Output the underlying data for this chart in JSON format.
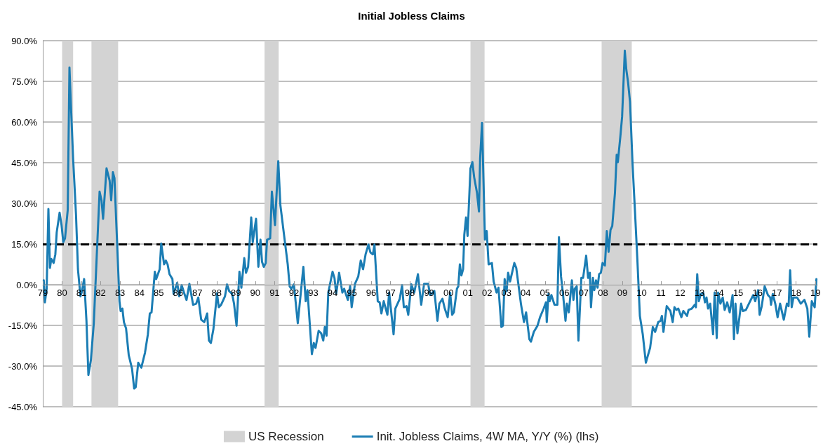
{
  "chart_data": {
    "type": "line",
    "title": "Initial Jobless Claims",
    "x": [
      1979.05,
      1979.11,
      1979.2,
      1979.29,
      1979.37,
      1979.44,
      1979.56,
      1979.65,
      1979.72,
      1979.87,
      1979.97,
      1980.06,
      1980.15,
      1980.29,
      1980.38,
      1980.47,
      1980.57,
      1980.72,
      1980.82,
      1980.95,
      1981.01,
      1981.14,
      1981.26,
      1981.36,
      1981.49,
      1981.64,
      1981.79,
      1981.94,
      1982.04,
      1982.12,
      1982.3,
      1982.46,
      1982.54,
      1982.63,
      1982.71,
      1982.84,
      1982.97,
      1983.03,
      1983.12,
      1983.2,
      1983.31,
      1983.45,
      1983.62,
      1983.73,
      1983.81,
      1983.94,
      1984.1,
      1984.29,
      1984.44,
      1984.54,
      1984.63,
      1984.8,
      1984.87,
      1985.05,
      1985.13,
      1985.28,
      1985.37,
      1985.46,
      1985.56,
      1985.71,
      1985.77,
      1985.96,
      1986.06,
      1986.19,
      1986.31,
      1986.44,
      1986.59,
      1986.78,
      1986.94,
      1987.05,
      1987.2,
      1987.36,
      1987.51,
      1987.6,
      1987.7,
      1987.83,
      1988.02,
      1988.11,
      1988.23,
      1988.43,
      1988.54,
      1988.65,
      1988.8,
      1988.9,
      1989.03,
      1989.18,
      1989.28,
      1989.43,
      1989.52,
      1989.63,
      1989.79,
      1989.87,
      1990.04,
      1990.16,
      1990.27,
      1990.35,
      1990.44,
      1990.54,
      1990.61,
      1990.77,
      1990.86,
      1991.02,
      1991.19,
      1991.3,
      1991.52,
      1991.68,
      1991.78,
      1991.87,
      1992.0,
      1992.2,
      1992.49,
      1992.61,
      1992.7,
      1992.93,
      1993.03,
      1993.12,
      1993.28,
      1993.41,
      1993.52,
      1993.6,
      1993.69,
      1993.78,
      1994.0,
      1994.1,
      1994.19,
      1994.34,
      1994.51,
      1994.6,
      1994.79,
      1994.91,
      1994.99,
      1995.16,
      1995.33,
      1995.46,
      1995.58,
      1995.71,
      1995.86,
      1995.96,
      1996.09,
      1996.17,
      1996.34,
      1996.44,
      1996.53,
      1996.65,
      1996.84,
      1996.93,
      1997.16,
      1997.25,
      1997.48,
      1997.6,
      1997.69,
      1997.83,
      1997.92,
      1998.08,
      1998.23,
      1998.42,
      1998.59,
      1998.74,
      1998.95,
      1999.05,
      1999.27,
      1999.43,
      1999.53,
      1999.69,
      1999.81,
      1999.96,
      2000.09,
      2000.19,
      2000.28,
      2000.44,
      2000.51,
      2000.59,
      2000.67,
      2000.76,
      2000.82,
      2000.91,
      2000.99,
      2001.14,
      2001.24,
      2001.33,
      2001.48,
      2001.58,
      2001.64,
      2001.74,
      2001.89,
      2001.98,
      2002.08,
      2002.25,
      2002.34,
      2002.49,
      2002.59,
      2002.74,
      2002.82,
      2002.91,
      2003.01,
      2003.09,
      2003.19,
      2003.41,
      2003.51,
      2003.76,
      2003.91,
      2004.02,
      2004.19,
      2004.27,
      2004.42,
      2004.61,
      2004.74,
      2004.93,
      2005.05,
      2005.09,
      2005.18,
      2005.24,
      2005.33,
      2005.49,
      2005.64,
      2005.72,
      2005.83,
      2005.93,
      2006.06,
      2006.13,
      2006.23,
      2006.39,
      2006.47,
      2006.54,
      2006.64,
      2006.73,
      2006.88,
      2006.97,
      2007.13,
      2007.23,
      2007.32,
      2007.38,
      2007.48,
      2007.55,
      2007.64,
      2007.72,
      2007.8,
      2007.89,
      2007.98,
      2008.1,
      2008.2,
      2008.29,
      2008.39,
      2008.48,
      2008.62,
      2008.71,
      2008.77,
      2008.9,
      2008.99,
      2009.13,
      2009.21,
      2009.3,
      2009.4,
      2009.53,
      2009.66,
      2009.78,
      2009.91,
      2010.06,
      2010.22,
      2010.31,
      2010.44,
      2010.58,
      2010.7,
      2010.86,
      2010.98,
      2011.05,
      2011.13,
      2011.3,
      2011.49,
      2011.61,
      2011.7,
      2011.8,
      2011.9,
      2012.06,
      2012.16,
      2012.35,
      2012.43,
      2012.6,
      2012.75,
      2012.81,
      2012.88,
      2012.96,
      2013.07,
      2013.19,
      2013.28,
      2013.36,
      2013.44,
      2013.55,
      2013.7,
      2013.78,
      2013.89,
      2013.96,
      2014.08,
      2014.2,
      2014.3,
      2014.43,
      2014.56,
      2014.71,
      2014.78,
      2014.86,
      2014.96,
      2015.15,
      2015.24,
      2015.4,
      2015.59,
      2015.78,
      2015.88,
      2016.03,
      2016.11,
      2016.22,
      2016.37,
      2016.54,
      2016.66,
      2016.7,
      2016.79,
      2016.92,
      2017.04,
      2017.17,
      2017.36,
      2017.52,
      2017.61,
      2017.69,
      2017.77,
      2017.86,
      2018.05,
      2018.24,
      2018.43,
      2018.58,
      2018.68,
      2018.81,
      2018.96,
      2019.05
    ],
    "series": [
      {
        "name": "Init. Jobless Claims, 4W MA, Y/Y (%) (lhs)",
        "color": "#1b7db4",
        "values": [
          1.6,
          -6.5,
          -1.5,
          27.9,
          6.2,
          9.5,
          8.0,
          11.2,
          19.3,
          26.6,
          22.0,
          15.7,
          17.1,
          27.5,
          80.1,
          63.8,
          46.5,
          25.7,
          5.7,
          -4.3,
          -2.9,
          2.1,
          -13.3,
          -33.3,
          -27.8,
          -14.2,
          10.2,
          34.3,
          31.1,
          24.3,
          42.9,
          38.4,
          31.1,
          41.5,
          39.3,
          16.6,
          -6.1,
          -9.7,
          -8.8,
          -13.8,
          -16.1,
          -26.0,
          -31.0,
          -38.3,
          -37.8,
          -28.8,
          -30.6,
          -25.1,
          -18.3,
          -10.6,
          -10.2,
          4.8,
          2.1,
          5.7,
          15.2,
          7.5,
          8.9,
          7.5,
          3.9,
          2.1,
          -3.4,
          0.7,
          -4.3,
          -0.2,
          -2.9,
          -5.6,
          0.3,
          -7.4,
          -7.0,
          -4.7,
          -12.9,
          -13.8,
          -10.6,
          -20.6,
          -21.5,
          -16.5,
          -3.2,
          -8.3,
          -7.4,
          -4.3,
          0.1,
          -2.4,
          -3.4,
          -7.0,
          -15.1,
          4.8,
          -1.1,
          9.8,
          4.4,
          6.6,
          24.8,
          15.7,
          24.3,
          6.6,
          16.6,
          8.4,
          6.6,
          8.0,
          16.6,
          17.1,
          34.3,
          22.0,
          45.6,
          29.3,
          16.6,
          7.5,
          -0.6,
          -1.5,
          0.1,
          -14.2,
          6.6,
          -6.1,
          -2.0,
          -25.6,
          -21.5,
          -23.3,
          -17.0,
          -17.9,
          -20.6,
          -15.6,
          -18.8,
          -2.9,
          4.8,
          2.5,
          -3.4,
          4.4,
          -2.9,
          -1.5,
          -5.6,
          -0.5,
          -8.3,
          0.3,
          3.0,
          8.9,
          5.7,
          11.2,
          14.8,
          11.9,
          11.2,
          14.8,
          -6.1,
          -6.5,
          -10.6,
          -6.1,
          -11.1,
          -2.9,
          -18.3,
          -8.8,
          -5.2,
          -0.2,
          -8.3,
          -7.9,
          -11.1,
          0.1,
          -2.9,
          3.9,
          -7.4,
          0.3,
          0.3,
          -3.8,
          -2.3,
          -13.3,
          -7.0,
          -5.2,
          -8.8,
          -12.0,
          -2.9,
          -11.1,
          -10.2,
          -1.5,
          -0.6,
          7.5,
          3.4,
          5.7,
          18.4,
          24.8,
          18.0,
          42.9,
          45.2,
          39.7,
          33.8,
          27.0,
          46.5,
          59.7,
          16.6,
          19.8,
          7.5,
          8.0,
          1.2,
          -2.9,
          -1.1,
          -15.6,
          -15.1,
          2.1,
          -2.4,
          4.4,
          1.2,
          8.0,
          6.2,
          -7.4,
          -13.8,
          -10.2,
          -20.1,
          -21.0,
          -17.4,
          -15.1,
          -12.0,
          -8.8,
          -6.5,
          -13.8,
          -3.4,
          -6.1,
          -3.8,
          -7.4,
          -7.4,
          17.5,
          3.0,
          -3.4,
          -13.3,
          -7.0,
          -10.2,
          1.6,
          -5.6,
          -1.5,
          -0.6,
          -20.6,
          2.5,
          2.5,
          10.7,
          2.5,
          4.4,
          -8.3,
          2.5,
          -2.0,
          1.6,
          -1.1,
          3.9,
          4.4,
          8.0,
          7.1,
          19.8,
          12.1,
          20.2,
          21.6,
          33.8,
          47.9,
          45.2,
          54.7,
          61.9,
          86.3,
          79.2,
          74.6,
          67.4,
          44.7,
          26.6,
          9.3,
          -11.5,
          -18.3,
          -28.8,
          -26.5,
          -23.3,
          -15.6,
          -17.4,
          -13.8,
          -13.3,
          -11.5,
          -17.4,
          -7.9,
          -9.7,
          -13.8,
          -8.3,
          -9.3,
          -8.8,
          -12.0,
          -9.7,
          -11.5,
          -9.3,
          -8.8,
          -7.4,
          -8.3,
          3.9,
          -6.1,
          -3.4,
          -2.9,
          -6.5,
          -4.7,
          -8.8,
          -7.0,
          -18.3,
          -2.9,
          -19.7,
          -2.9,
          -7.0,
          -4.7,
          -9.3,
          -6.5,
          -10.2,
          -3.8,
          -20.1,
          -7.0,
          -17.9,
          -7.0,
          -9.7,
          -9.3,
          -6.5,
          -3.8,
          -6.1,
          -2.0,
          -11.1,
          -7.9,
          -0.6,
          -3.8,
          -4.7,
          -7.4,
          -3.4,
          -7.0,
          -12.0,
          -7.0,
          -12.9,
          -7.0,
          -7.9,
          5.3,
          -8.3,
          -4.7,
          -4.7,
          -7.0,
          -5.6,
          -8.8,
          -19.2,
          -6.1,
          -8.3,
          2.1
        ]
      }
    ],
    "xlim": [
      1979,
      2019.1
    ],
    "xticks": [
      {
        "value": 1979,
        "label": "79"
      },
      {
        "value": 1980,
        "label": "80"
      },
      {
        "value": 1981,
        "label": "81"
      },
      {
        "value": 1982,
        "label": "82"
      },
      {
        "value": 1983,
        "label": "83"
      },
      {
        "value": 1984,
        "label": "84"
      },
      {
        "value": 1985,
        "label": "85"
      },
      {
        "value": 1986,
        "label": "86"
      },
      {
        "value": 1987,
        "label": "87"
      },
      {
        "value": 1988,
        "label": "88"
      },
      {
        "value": 1989,
        "label": "89"
      },
      {
        "value": 1990,
        "label": "90"
      },
      {
        "value": 1991,
        "label": "91"
      },
      {
        "value": 1992,
        "label": "92"
      },
      {
        "value": 1993,
        "label": "93"
      },
      {
        "value": 1994,
        "label": "94"
      },
      {
        "value": 1995,
        "label": "95"
      },
      {
        "value": 1996,
        "label": "96"
      },
      {
        "value": 1997,
        "label": "97"
      },
      {
        "value": 1998,
        "label": "98"
      },
      {
        "value": 1999,
        "label": "99"
      },
      {
        "value": 2000,
        "label": "00"
      },
      {
        "value": 2001,
        "label": "01"
      },
      {
        "value": 2002,
        "label": "02"
      },
      {
        "value": 2003,
        "label": "03"
      },
      {
        "value": 2004,
        "label": "04"
      },
      {
        "value": 2005,
        "label": "05"
      },
      {
        "value": 2006,
        "label": "06"
      },
      {
        "value": 2007,
        "label": "07"
      },
      {
        "value": 2008,
        "label": "08"
      },
      {
        "value": 2009,
        "label": "09"
      },
      {
        "value": 2010,
        "label": "10"
      },
      {
        "value": 2011,
        "label": "11"
      },
      {
        "value": 2012,
        "label": "12"
      },
      {
        "value": 2013,
        "label": "13"
      },
      {
        "value": 2014,
        "label": "14"
      },
      {
        "value": 2015,
        "label": "15"
      },
      {
        "value": 2016,
        "label": "16"
      },
      {
        "value": 2017,
        "label": "17"
      },
      {
        "value": 2018,
        "label": "18"
      },
      {
        "value": 2019,
        "label": "19"
      }
    ],
    "ylim": [
      -45,
      90
    ],
    "yticks": [
      {
        "value": -45,
        "label": "-45.0%"
      },
      {
        "value": -30,
        "label": "-30.0%"
      },
      {
        "value": -15,
        "label": "-15.0%"
      },
      {
        "value": 0,
        "label": "0.0%"
      },
      {
        "value": 15,
        "label": "15.0%"
      },
      {
        "value": 30,
        "label": "30.0%"
      },
      {
        "value": 45,
        "label": "45.0%"
      },
      {
        "value": 60,
        "label": "60.0%"
      },
      {
        "value": 75,
        "label": "75.0%"
      },
      {
        "value": 90,
        "label": "90.0%"
      }
    ],
    "bands": [
      {
        "axis": "x",
        "from": 1980.0,
        "to": 1980.57,
        "label": "US Recession",
        "color": "#d3d3d3"
      },
      {
        "axis": "x",
        "from": 1981.52,
        "to": 1982.9,
        "color": "#d3d3d3"
      },
      {
        "axis": "x",
        "from": 1990.48,
        "to": 1991.21,
        "color": "#d3d3d3"
      },
      {
        "axis": "x",
        "from": 2001.14,
        "to": 2001.87,
        "color": "#d3d3d3"
      },
      {
        "axis": "x",
        "from": 2007.93,
        "to": 2009.49,
        "color": "#d3d3d3"
      }
    ],
    "ref_lines": [
      {
        "axis": "y",
        "value": 15,
        "color": "#000000",
        "line_style": "dashed"
      }
    ],
    "grid": "y",
    "legend": "bottom",
    "marker": "none",
    "line_style": "solid"
  }
}
